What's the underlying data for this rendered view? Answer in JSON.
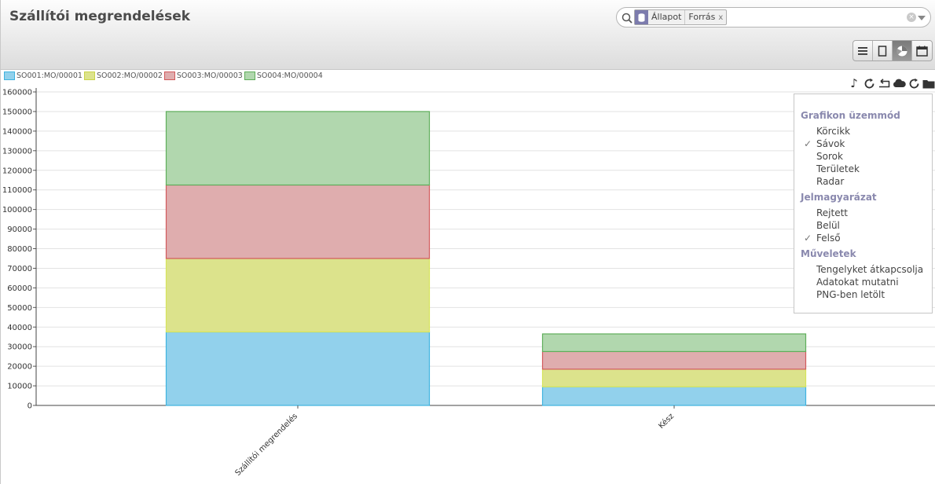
{
  "header": {
    "title": "Szállítói megrendelések"
  },
  "search": {
    "facet_values": [
      "Állapot",
      "Forrás"
    ],
    "facet_close": "x",
    "clear_glyph": "×"
  },
  "views": [
    {
      "name": "list",
      "icon": "list-icon",
      "active": false
    },
    {
      "name": "form",
      "icon": "form-icon",
      "active": false
    },
    {
      "name": "graph",
      "icon": "chart-icon",
      "active": true
    },
    {
      "name": "calendar",
      "icon": "calendar-icon",
      "active": false
    }
  ],
  "toolbar_icons": [
    "music-note-icon",
    "refresh-icon",
    "return-icon",
    "cloud-icon",
    "refresh-icon",
    "folder-icon"
  ],
  "graph_menu": {
    "sections": [
      {
        "header": "Grafikon üzemmód",
        "items": [
          {
            "label": "Körcikk",
            "checked": false
          },
          {
            "label": "Sávok",
            "checked": true
          },
          {
            "label": "Sorok",
            "checked": false
          },
          {
            "label": "Területek",
            "checked": false
          },
          {
            "label": "Radar",
            "checked": false
          }
        ]
      },
      {
        "header": "Jelmagyarázat",
        "items": [
          {
            "label": "Rejtett",
            "checked": false
          },
          {
            "label": "Belül",
            "checked": false
          },
          {
            "label": "Felső",
            "checked": true
          }
        ]
      },
      {
        "header": "Műveletek",
        "items": [
          {
            "label": "Tengelyket átkapcsolja",
            "checked": false
          },
          {
            "label": "Adatokat mutatni",
            "checked": false
          },
          {
            "label": "PNG-ben letölt",
            "checked": false
          }
        ]
      }
    ],
    "check_glyph": "✓"
  },
  "chart_data": {
    "type": "bar",
    "stacked": true,
    "categories": [
      "Szállítói megrendelés",
      "Kész"
    ],
    "series": [
      {
        "name": "SO001:MO/00001",
        "values": [
          37500,
          9500
        ],
        "fill": "#92d1ec",
        "stroke": "#3fb3e0"
      },
      {
        "name": "SO002:MO/00002",
        "values": [
          37500,
          9000
        ],
        "fill": "#dce38c",
        "stroke": "#d6e45b"
      },
      {
        "name": "SO003:MO/00003",
        "values": [
          37500,
          9000
        ],
        "fill": "#dfadae",
        "stroke": "#d25a5c"
      },
      {
        "name": "SO004:MO/00004",
        "values": [
          37500,
          9000
        ],
        "fill": "#b1d7ae",
        "stroke": "#5fae5a"
      }
    ],
    "ylim": [
      0,
      160000
    ],
    "yticks": [
      "0",
      "10000",
      "20000",
      "30000",
      "40000",
      "50000",
      "60000",
      "70000",
      "80000",
      "90000",
      "100000",
      "110000",
      "120000",
      "130000",
      "140000",
      "150000",
      "160000"
    ],
    "grid": true,
    "legend": "top-left"
  }
}
